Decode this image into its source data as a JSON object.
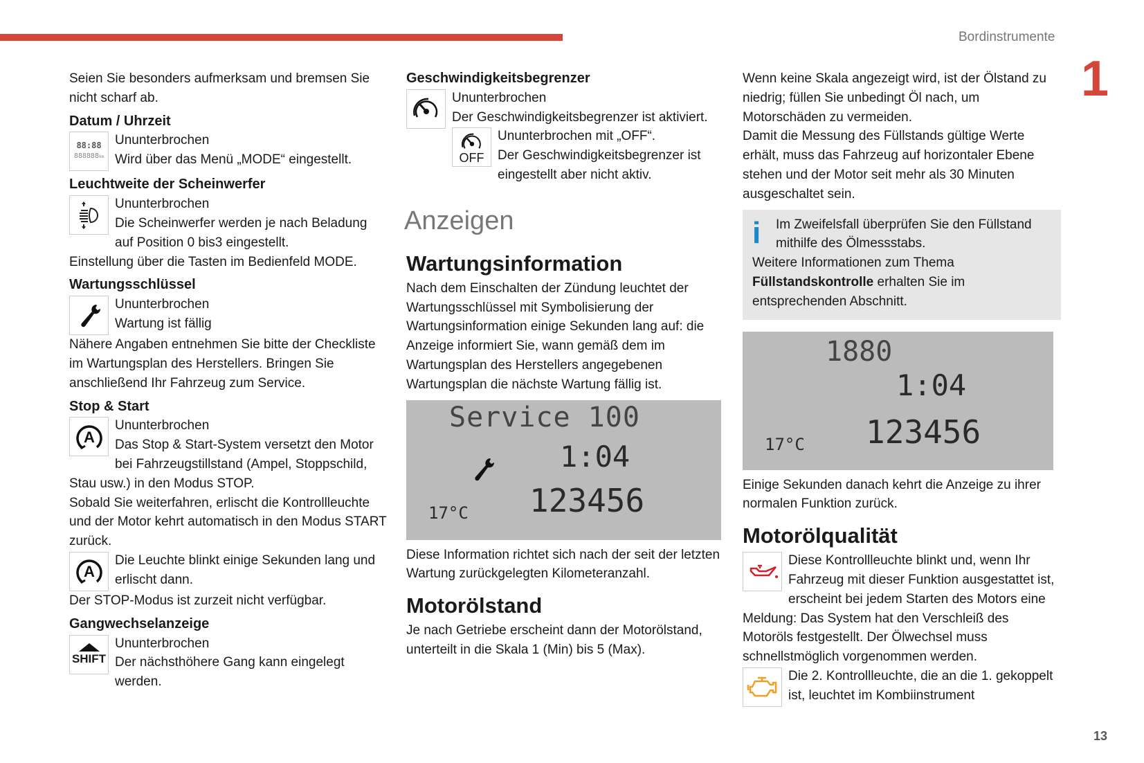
{
  "header": {
    "running_title": "Bordinstrumente",
    "chapter_number": "1",
    "page_number": "13",
    "accent_color": "#d4453a"
  },
  "col1": {
    "intro": "Seien Sie besonders aufmerksam und bremsen Sie nicht scharf ab.",
    "datum": {
      "title": "Datum / Uhrzeit",
      "l1": "Ununterbrochen",
      "l2": "Wird über das Menü „MODE“ eingestellt.",
      "icon_time": "88:88",
      "icon_km": "888888",
      "icon_unit": "km"
    },
    "leuchtweite": {
      "title": "Leuchtweite der Scheinwerfer",
      "l1": "Ununterbrochen",
      "l2": "Die Scheinwerfer werden je nach Beladung auf Position 0 bis3 eingestellt.",
      "l3": "Einstellung über die Tasten im Bedienfeld MODE."
    },
    "wartung": {
      "title": "Wartungsschlüssel",
      "l1": "Ununterbrochen",
      "l2": "Wartung ist fällig",
      "l3": "Nähere Angaben entnehmen Sie bitte der Checkliste im Wartungsplan des Herstellers. Bringen Sie anschließend Ihr Fahrzeug zum Service."
    },
    "stopstart": {
      "title": "Stop & Start",
      "l1": "Ununterbrochen",
      "l2": "Das Stop & Start-System versetzt den Motor bei Fahrzeugstillstand (Ampel, Stoppschild, Stau usw.) in den Modus STOP.",
      "l3": "Sobald Sie weiterfahren, erlischt die Kontrollleuchte und der Motor kehrt automatisch in den Modus START zurück.",
      "l4": "Die Leuchte blinkt einige Sekunden lang und erlischt dann.",
      "l5": "Der STOP-Modus ist zurzeit nicht verfügbar.",
      "icon_letter": "A"
    },
    "gang": {
      "title": "Gangwechselanzeige",
      "l1": "Ununterbrochen",
      "l2": "Der nächsthöhere Gang kann eingelegt werden.",
      "icon_label": "SHIFT"
    }
  },
  "col2": {
    "limiter": {
      "title": "Geschwindigkeitsbegrenzer",
      "l1": "Ununterbrochen",
      "l2": "Der Geschwindigkeitsbegrenzer ist aktiviert.",
      "l3": "Ununterbrochen mit „OFF“.",
      "l4": "Der Geschwindigkeitsbegrenzer ist eingestellt aber nicht aktiv.",
      "icon_off": "OFF"
    },
    "section": "Anzeigen",
    "wartungsinfo": {
      "title": "Wartungsinformation",
      "text": "Nach dem Einschalten der Zündung leuchtet der Wartungsschlüssel mit Symbolisierung der Wartungsinformation einige Sekunden lang auf: die Anzeige informiert Sie, wann gemäß dem im Wartungsplan des Herstellers angegebenen Wartungsplan die nächste Wartung fällig ist.",
      "lcd": {
        "top": "Service 100",
        "time": "1:04",
        "temp": "17°C",
        "odo": "123456"
      },
      "after": "Diese Information richtet sich nach der seit der letzten Wartung zurückgelegten Kilometeranzahl."
    },
    "oelstand": {
      "title": "Motorölstand",
      "text": "Je nach Getriebe erscheint dann der Motorölstand, unterteilt in die Skala 1 (Min) bis 5 (Max)."
    }
  },
  "col3": {
    "p1": "Wenn keine Skala angezeigt wird, ist der Ölstand zu niedrig; füllen Sie unbedingt Öl nach, um Motorschäden zu vermeiden.",
    "p2": "Damit die Messung des Füllstands gültige Werte erhält, muss das Fahrzeug auf horizontaler Ebene stehen und der Motor seit mehr als 30 Minuten ausgeschaltet sein.",
    "info": {
      "l1": "Im Zweifelsfall überprüfen Sie den Füllstand mithilfe des Ölmessstabs.",
      "l2a": "Weitere Informationen zum Thema ",
      "l2b": "Füllstandskontrolle",
      "l2c": " erhalten Sie im entsprechenden Abschnitt.",
      "icon_color": "#1e88c7"
    },
    "lcd": {
      "top": "1880",
      "time": "1:04",
      "temp": "17°C",
      "odo": "123456"
    },
    "p3": "Einige Sekunden danach kehrt die Anzeige zu ihrer normalen Funktion zurück.",
    "qualitaet": {
      "title": "Motorölqualität",
      "l1": "Diese Kontrollleuchte blinkt und, wenn Ihr Fahrzeug mit dieser Funktion ausgestattet ist, erscheint bei jedem Starten des Motors eine Meldung: Das System hat den Verschleiß des Motoröls festgestellt. Der Ölwechsel muss schnellstmöglich vorgenommen werden.",
      "l2": "Die 2. Kontrollleuchte, die an die 1. gekoppelt ist, leuchtet im Kombiinstrument",
      "oil_icon_color": "#d0202e",
      "engine_icon_color": "#f0a020"
    }
  }
}
